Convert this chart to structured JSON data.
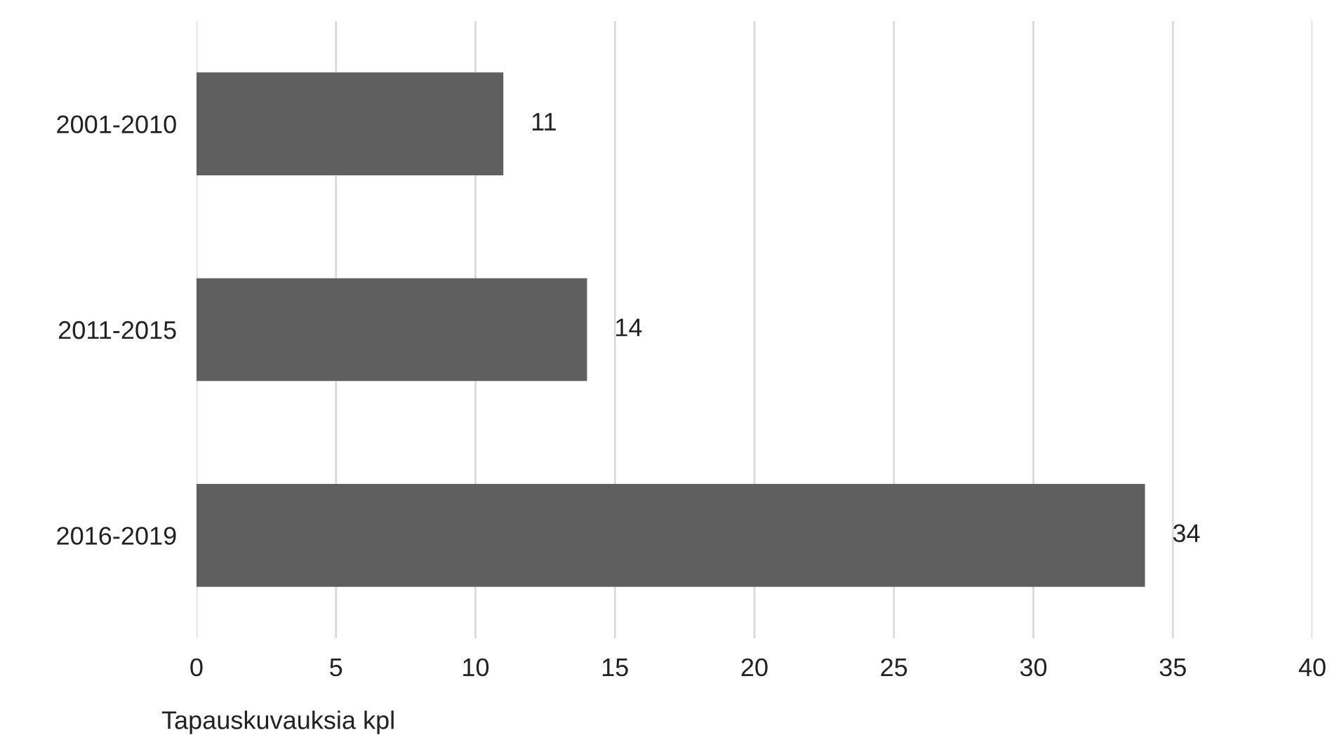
{
  "chart_data": {
    "type": "bar",
    "orientation": "horizontal",
    "xlabel": "Tapauskuvauksia kpl",
    "categories": [
      "2001-2010",
      "2011-2015",
      "2016-2019"
    ],
    "values": [
      11,
      14,
      34
    ],
    "color": "#5f5f5f",
    "xlim": [
      0,
      40
    ],
    "xticks": [
      0,
      5,
      10,
      15,
      20,
      25,
      30,
      35,
      40
    ],
    "grid": "x",
    "data_labels": true
  }
}
